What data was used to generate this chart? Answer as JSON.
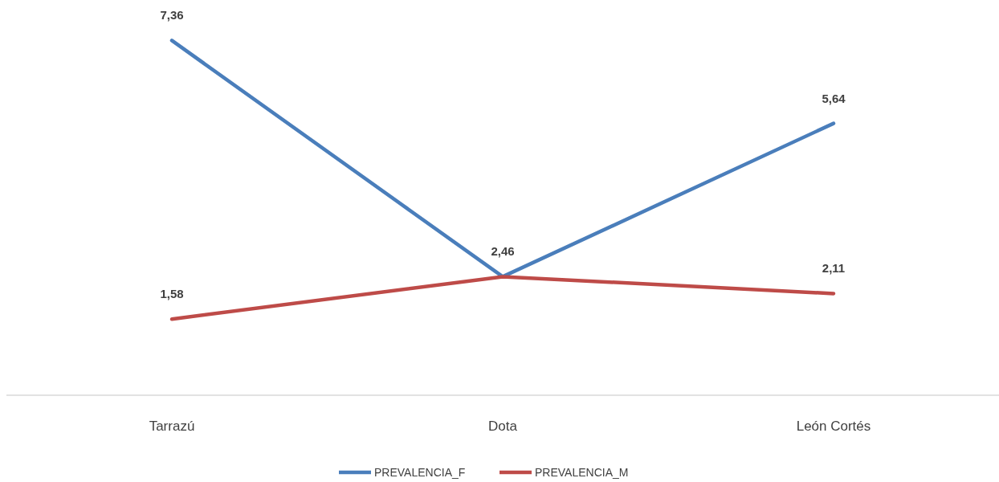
{
  "chart_data": {
    "type": "line",
    "categories": [
      "Tarrazú",
      "Dota",
      "León Cortés"
    ],
    "ylim": [
      0,
      8.2
    ],
    "tick_labels": "x",
    "legend": "bottom",
    "marker": "none",
    "line_style": "solid",
    "series": [
      {
        "name": "PREVALENCIA_F",
        "color": "#4a7ebb",
        "values": [
          7.36,
          2.46,
          5.64
        ],
        "value_labels": [
          "7,36",
          "2,46",
          "5,64"
        ]
      },
      {
        "name": "PREVALENCIA_M",
        "color": "#be4b48",
        "values": [
          1.58,
          2.46,
          2.11
        ],
        "value_labels": [
          "1,58",
          null,
          "2,11"
        ]
      }
    ]
  }
}
